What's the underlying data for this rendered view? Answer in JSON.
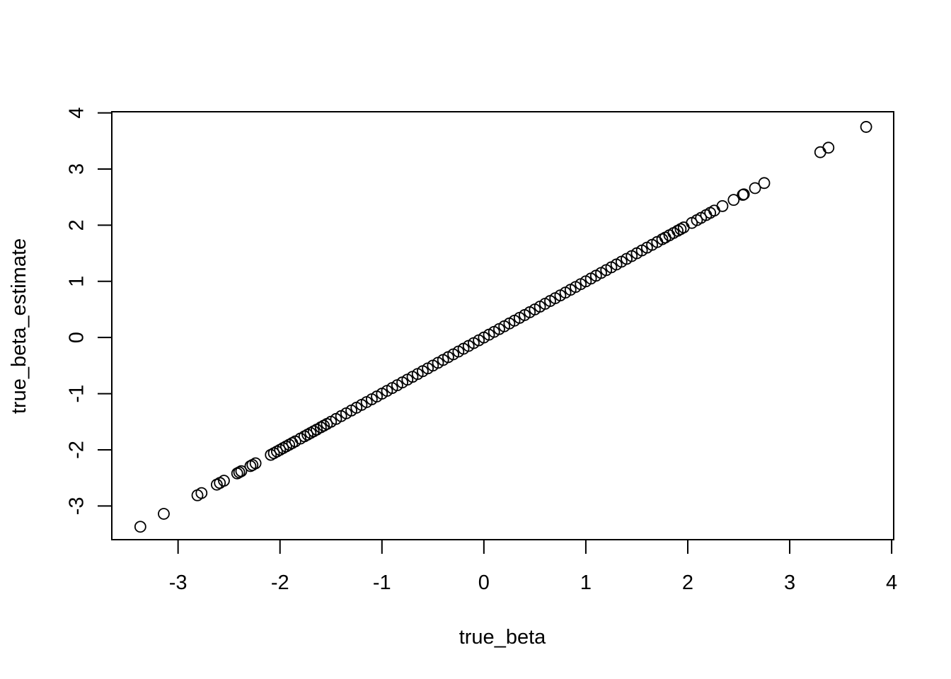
{
  "chart_data": {
    "type": "scatter",
    "title": "",
    "xlabel": "true_beta",
    "ylabel": "true_beta_estimate",
    "xlim": [
      -3.65,
      4.02
    ],
    "ylim": [
      -3.6,
      4.02
    ],
    "x_ticks": [
      -3,
      -2,
      -1,
      0,
      1,
      2,
      3,
      4
    ],
    "y_ticks": [
      -3,
      -2,
      -1,
      0,
      1,
      2,
      3,
      4
    ],
    "grid": false,
    "legend": "none",
    "marker": "open-circle",
    "marker_color": "#000000",
    "series": [
      {
        "x": [
          -3.37,
          -3.14,
          -2.81,
          -2.77,
          -2.62,
          -2.59,
          -2.55,
          -2.42,
          -2.4,
          -2.38,
          -2.29,
          -2.27,
          -2.24,
          -2.09,
          -2.06,
          -2.03,
          -2.0,
          -1.97,
          -1.94,
          -1.91,
          -1.88,
          -1.85,
          -1.8,
          -1.76,
          -1.73,
          -1.7,
          -1.67,
          -1.64,
          -1.6,
          -1.57,
          -1.54,
          -1.5,
          -1.45,
          -1.4,
          -1.35,
          -1.3,
          -1.25,
          -1.2,
          -1.15,
          -1.1,
          -1.05,
          -1.0,
          -0.95,
          -0.9,
          -0.85,
          -0.8,
          -0.75,
          -0.7,
          -0.65,
          -0.6,
          -0.55,
          -0.5,
          -0.45,
          -0.4,
          -0.35,
          -0.3,
          -0.25,
          -0.2,
          -0.15,
          -0.1,
          -0.05,
          0.0,
          0.05,
          0.1,
          0.15,
          0.2,
          0.25,
          0.3,
          0.35,
          0.4,
          0.45,
          0.5,
          0.55,
          0.6,
          0.65,
          0.7,
          0.75,
          0.8,
          0.85,
          0.9,
          0.95,
          1.0,
          1.05,
          1.1,
          1.15,
          1.2,
          1.25,
          1.3,
          1.35,
          1.4,
          1.45,
          1.5,
          1.55,
          1.6,
          1.65,
          1.7,
          1.75,
          1.78,
          1.82,
          1.86,
          1.9,
          1.93,
          1.96,
          2.04,
          2.09,
          2.13,
          2.18,
          2.22,
          2.26,
          2.34,
          2.45,
          2.54,
          2.55,
          2.66,
          2.75,
          3.3,
          3.38,
          3.75
        ],
        "y": [
          -3.37,
          -3.14,
          -2.81,
          -2.77,
          -2.62,
          -2.59,
          -2.55,
          -2.42,
          -2.4,
          -2.38,
          -2.29,
          -2.27,
          -2.24,
          -2.09,
          -2.06,
          -2.03,
          -2.0,
          -1.97,
          -1.94,
          -1.91,
          -1.88,
          -1.85,
          -1.8,
          -1.76,
          -1.73,
          -1.7,
          -1.67,
          -1.64,
          -1.6,
          -1.57,
          -1.54,
          -1.5,
          -1.45,
          -1.4,
          -1.35,
          -1.3,
          -1.25,
          -1.2,
          -1.15,
          -1.1,
          -1.05,
          -1.0,
          -0.95,
          -0.9,
          -0.85,
          -0.8,
          -0.75,
          -0.7,
          -0.65,
          -0.6,
          -0.55,
          -0.5,
          -0.45,
          -0.4,
          -0.35,
          -0.3,
          -0.25,
          -0.2,
          -0.15,
          -0.1,
          -0.05,
          0.0,
          0.05,
          0.1,
          0.15,
          0.2,
          0.25,
          0.3,
          0.35,
          0.4,
          0.45,
          0.5,
          0.55,
          0.6,
          0.65,
          0.7,
          0.75,
          0.8,
          0.85,
          0.9,
          0.95,
          1.0,
          1.05,
          1.1,
          1.15,
          1.2,
          1.25,
          1.3,
          1.35,
          1.4,
          1.45,
          1.5,
          1.55,
          1.6,
          1.65,
          1.7,
          1.75,
          1.78,
          1.82,
          1.86,
          1.9,
          1.93,
          1.96,
          2.04,
          2.09,
          2.13,
          2.18,
          2.22,
          2.26,
          2.34,
          2.45,
          2.54,
          2.55,
          2.66,
          2.75,
          3.3,
          3.38,
          3.75
        ]
      }
    ]
  }
}
